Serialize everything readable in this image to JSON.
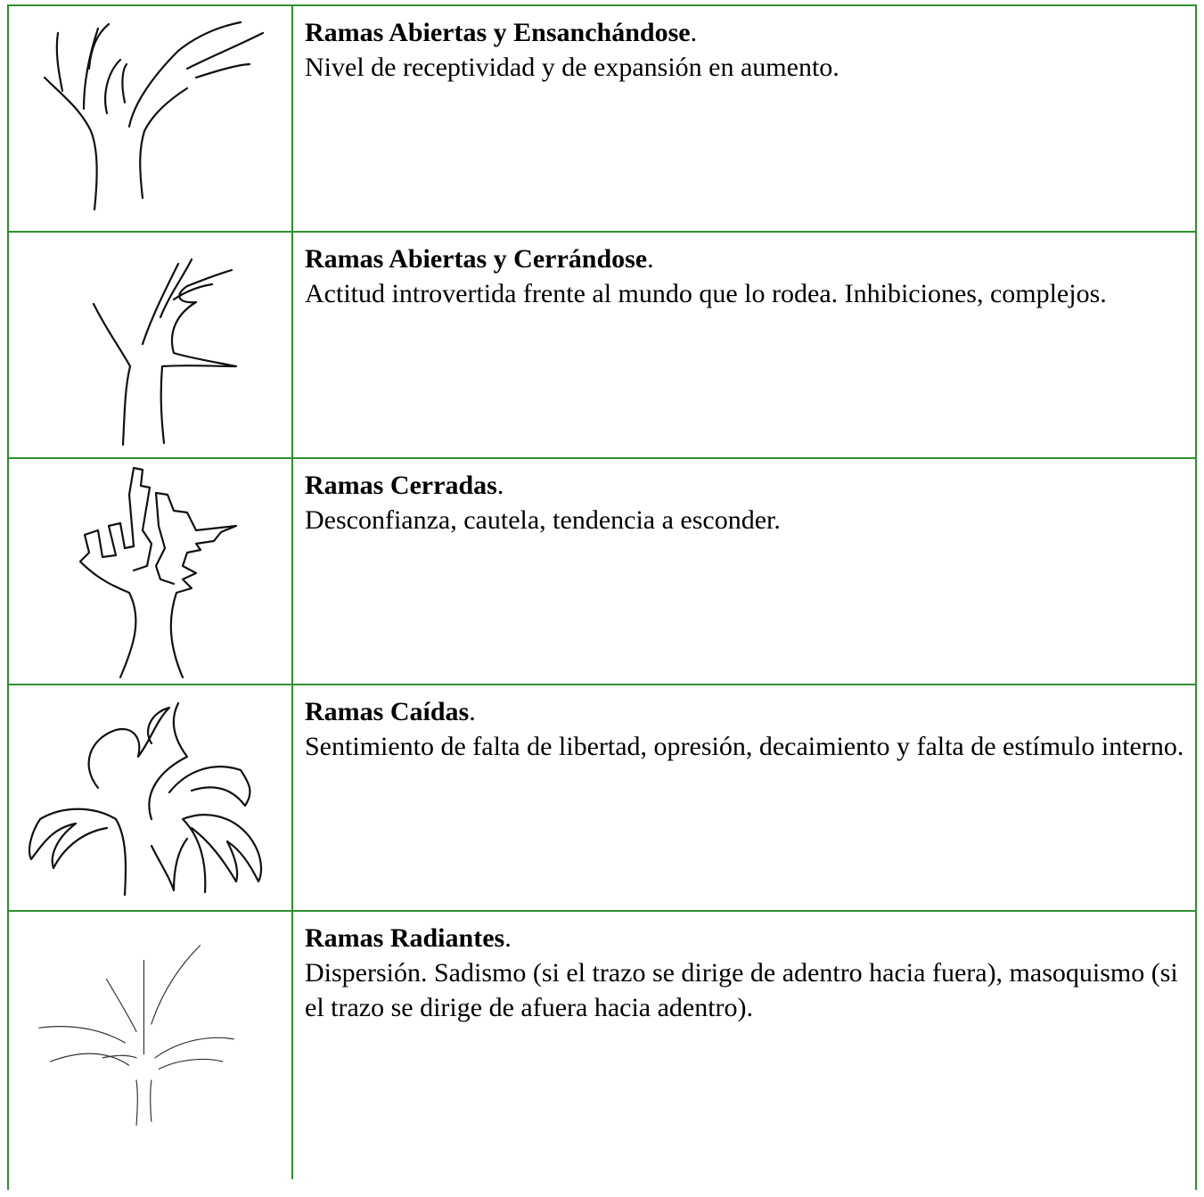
{
  "table": {
    "rows": [
      {
        "title": "Ramas Abiertas y Ensanchándose",
        "punct": ".",
        "description": "Nivel de receptividad y de expansión en aumento."
      },
      {
        "title": "Ramas Abiertas y Cerrándose",
        "punct": ".",
        "description": "Actitud introvertida frente al mundo que lo rodea. Inhibiciones, complejos."
      },
      {
        "title": "Ramas Cerradas",
        "punct": ".",
        "description": "Desconfianza, cautela, tendencia a esconder."
      },
      {
        "title": "Ramas Caídas",
        "punct": ".",
        "description": "Sentimiento de falta de libertad, opresión, decaimiento y falta de estímulo interno."
      },
      {
        "title": "Ramas Radiantes",
        "punct": ".",
        "description": "Dispersión. Sadismo (si el trazo se dirige de adentro hacia fuera), masoquismo (si el trazo se dirige de afuera hacia adentro)."
      }
    ]
  }
}
